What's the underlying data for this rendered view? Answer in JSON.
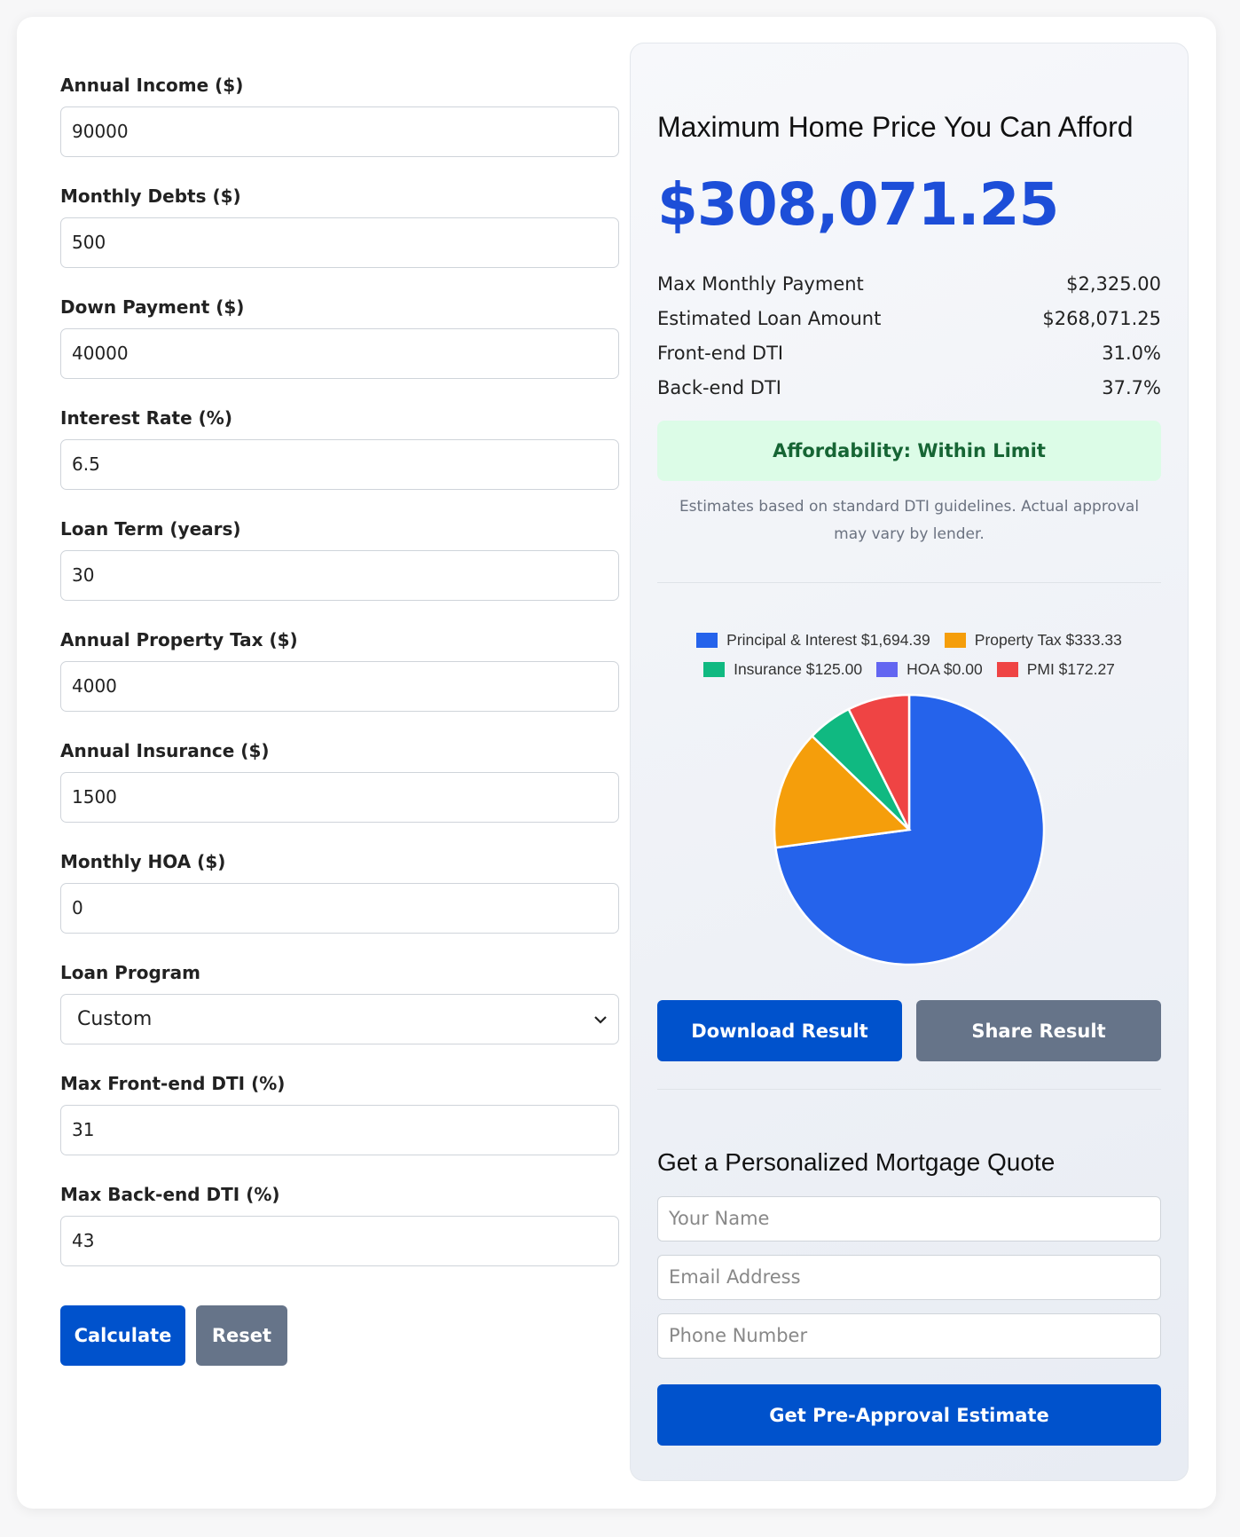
{
  "form": {
    "fields": [
      {
        "label": "Annual Income ($)",
        "value": "90000"
      },
      {
        "label": "Monthly Debts ($)",
        "value": "500"
      },
      {
        "label": "Down Payment ($)",
        "value": "40000"
      },
      {
        "label": "Interest Rate (%)",
        "value": "6.5"
      },
      {
        "label": "Loan Term (years)",
        "value": "30"
      },
      {
        "label": "Annual Property Tax ($)",
        "value": "4000"
      },
      {
        "label": "Annual Insurance ($)",
        "value": "1500"
      },
      {
        "label": "Monthly HOA ($)",
        "value": "0"
      },
      {
        "label": "Loan Program",
        "value": "Custom"
      },
      {
        "label": "Max Front-end DTI (%)",
        "value": "31"
      },
      {
        "label": "Max Back-end DTI (%)",
        "value": "43"
      }
    ],
    "calculate": "Calculate",
    "reset": "Reset"
  },
  "result": {
    "title": "Maximum Home Price You Can Afford",
    "price": "$308,071.25",
    "rows": [
      {
        "label": "Max Monthly Payment",
        "value": "$2,325.00"
      },
      {
        "label": "Estimated Loan Amount",
        "value": "$268,071.25"
      },
      {
        "label": "Front-end DTI",
        "value": "31.0%"
      },
      {
        "label": "Back-end DTI",
        "value": "37.7%"
      }
    ],
    "status": "Affordability: Within Limit",
    "note": "Estimates based on standard DTI guidelines. Actual approval may vary by lender.",
    "download": "Download Result",
    "share": "Share Result"
  },
  "chart_data": {
    "type": "pie",
    "labels": [
      "Principal & Interest $1,694.39",
      "Property Tax $333.33",
      "Insurance $125.00",
      "HOA $0.00",
      "PMI $172.27"
    ],
    "values": [
      1694.39,
      333.33,
      125.0,
      0,
      172.27
    ],
    "colors": [
      "#2563eb",
      "#f59e0b",
      "#10b981",
      "#6366f1",
      "#ef4444"
    ],
    "legend": "top"
  },
  "quote": {
    "title": "Get a Personalized Mortgage Quote",
    "name_placeholder": "Your Name",
    "email_placeholder": "Email Address",
    "phone_placeholder": "Phone Number",
    "submit": "Get Pre-Approval Estimate"
  }
}
